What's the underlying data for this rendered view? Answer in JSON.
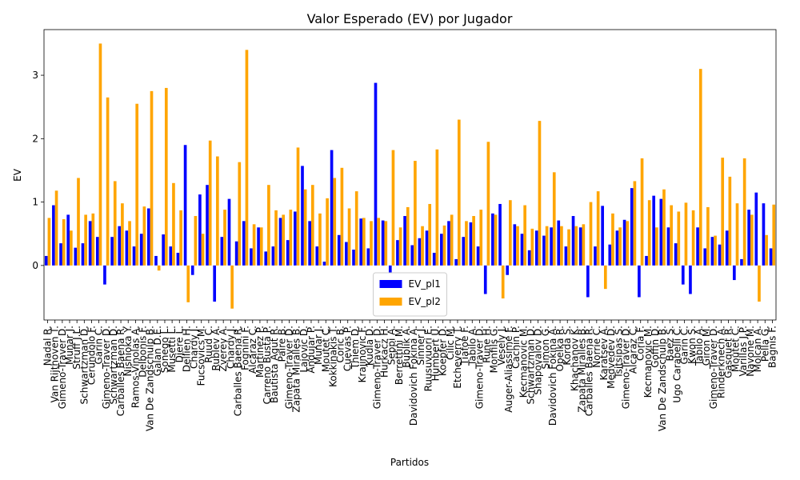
{
  "chart_data": {
    "type": "bar",
    "title": "Valor Esperado (EV) por Jugador",
    "xlabel": "Partidos",
    "ylabel": "EV",
    "categories": [
      "Nadal R.",
      "Van Rijthoven T.",
      "Gimeno-Traver D.",
      "Munar J.",
      "Struff J.L.",
      "Schwartzman D.",
      "Cerundolo F.",
      "Garin C.",
      "Gimeno-Traver D.",
      "Schwartzman D.",
      "Carballes Baena R.",
      "Nishioka Y.",
      "Ramos-Vinolas A.",
      "Delbonis F.",
      "Van De Zandschulp B.",
      "Galan D.E.",
      "Sonego L.",
      "Musetti L.",
      "Djere L.",
      "Dellien H.",
      "Chardy J.",
      "Fucsovics M.",
      "Ruud C.",
      "Rublev A.",
      "Zverev A.",
      "Chardy J.",
      "Carballes Baena R.",
      "Fognini F.",
      "Alcaraz C.",
      "Martinez P.",
      "Carreno Busta P.",
      "Bautista Agut R.",
      "Paire B.",
      "Gimeno-Traver D.",
      "Zapata Miralles B.",
      "Lajovic D.",
      "Andujar P.",
      "Munar J.",
      "Moutet C.",
      "Kokkinakis T.",
      "Coric B.",
      "Cuevas P.",
      "Thiem D.",
      "Krajinovic F.",
      "Kudla D.",
      "Gimeno-Traver D.",
      "Hurkacz H.",
      "Seppi A.",
      "Berrettini M.",
      "Bublik A.",
      "Davidovich Fokina A.",
      "Sinner J.",
      "Ruusuvuori E.",
      "Humbert U.",
      "Koepfer D.",
      "Cilic M.",
      "Etcheverry T.",
      "Tiafoe F.",
      "Tabilo A.",
      "Gimeno-Traver D.",
      "Rune H.",
      "Monfils G.",
      "Vesely J.",
      "Auger-Aliassime F.",
      "Cachin P.",
      "Kecmanovic M.",
      "Schwartzman D.",
      "Shapovalov D.",
      "Simon G.",
      "Davidovich Fokina A.",
      "Opelka R.",
      "Korda S.",
      "Khachanov K.",
      "Zapata Miralles B.",
      "Carballes Baena R.",
      "Norrie C.",
      "Karatsev A.",
      "Medvedev D.",
      "Tsitsipas S.",
      "Gimeno-Traver D.",
      "Alcaraz C.",
      "Coria F.",
      "Kecmanovic M.",
      "Goffin D.",
      "Van De Zandschulp B.",
      "Baez S.",
      "Ugo Carabelli C.",
      "Garin C.",
      "Kwon S.",
      "Tabilo A.",
      "Giron M.",
      "Gimeno-Traver D.",
      "Rinderknech A.",
      "Gasquet R.",
      "Moutet C.",
      "Varillas J.P.",
      "Navone M.",
      "Molcan A.",
      "Pella G.",
      "Bagnis F."
    ],
    "series": [
      {
        "name": "EV_pl1",
        "color": "#0000ff",
        "values": [
          0.15,
          0.95,
          0.35,
          0.8,
          0.28,
          0.35,
          0.7,
          0.45,
          -0.3,
          0.45,
          0.62,
          0.55,
          0.3,
          0.5,
          0.9,
          0.15,
          0.49,
          0.3,
          0.2,
          1.9,
          -0.15,
          1.12,
          1.27,
          -0.57,
          0.45,
          1.05,
          0.38,
          0.7,
          0.27,
          0.6,
          0.22,
          0.3,
          0.75,
          0.4,
          0.85,
          1.57,
          0.7,
          0.3,
          0.06,
          1.82,
          0.48,
          0.37,
          0.25,
          0.74,
          0.27,
          2.88,
          0.71,
          -0.15,
          0.4,
          0.78,
          0.32,
          0.43,
          0.55,
          0.2,
          0.5,
          0.7,
          0.1,
          0.45,
          0.68,
          0.3,
          -0.45,
          0.82,
          0.97,
          -0.15,
          0.65,
          0.5,
          0.24,
          0.55,
          0.47,
          0.6,
          0.71,
          0.3,
          0.78,
          0.6,
          -0.5,
          0.3,
          0.94,
          0.33,
          0.55,
          0.72,
          1.22,
          -0.5,
          0.15,
          1.1,
          1.05,
          0.6,
          0.35,
          -0.3,
          -0.45,
          0.6,
          0.27,
          0.45,
          0.33,
          0.55,
          -0.23,
          0.1,
          0.88,
          1.15,
          0.98,
          0.27
        ]
      },
      {
        "name": "EV_pl2",
        "color": "#ffa500",
        "values": [
          0.75,
          1.18,
          0.73,
          0.55,
          1.38,
          0.8,
          0.82,
          3.5,
          2.65,
          1.33,
          0.98,
          0.7,
          2.55,
          0.93,
          2.75,
          -0.08,
          2.8,
          1.3,
          0.87,
          -0.58,
          0.78,
          0.5,
          1.97,
          1.72,
          0.88,
          -0.68,
          1.63,
          3.4,
          0.65,
          0.6,
          1.27,
          0.87,
          0.8,
          0.88,
          1.86,
          1.2,
          1.27,
          0.82,
          1.06,
          1.38,
          1.54,
          0.9,
          1.17,
          0.75,
          0.7,
          0.75,
          0.7,
          1.82,
          0.6,
          0.92,
          1.65,
          0.62,
          0.97,
          1.83,
          0.63,
          0.8,
          2.3,
          0.7,
          0.78,
          0.88,
          1.95,
          0.8,
          -0.52,
          1.03,
          0.62,
          0.95,
          0.58,
          2.28,
          0.62,
          1.47,
          0.62,
          0.57,
          0.62,
          0.65,
          1.0,
          1.17,
          -0.37,
          0.82,
          0.6,
          0.7,
          1.33,
          1.69,
          1.03,
          0.6,
          1.2,
          0.95,
          0.85,
          0.99,
          0.87,
          3.1,
          0.92,
          0.47,
          1.7,
          1.4,
          0.98,
          1.69,
          0.8,
          -0.57,
          0.48,
          0.96
        ]
      }
    ],
    "ylim": [
      -0.86,
      3.72
    ],
    "yticks": [
      0,
      1,
      2,
      3
    ],
    "grid": false,
    "legend": "lower center"
  }
}
